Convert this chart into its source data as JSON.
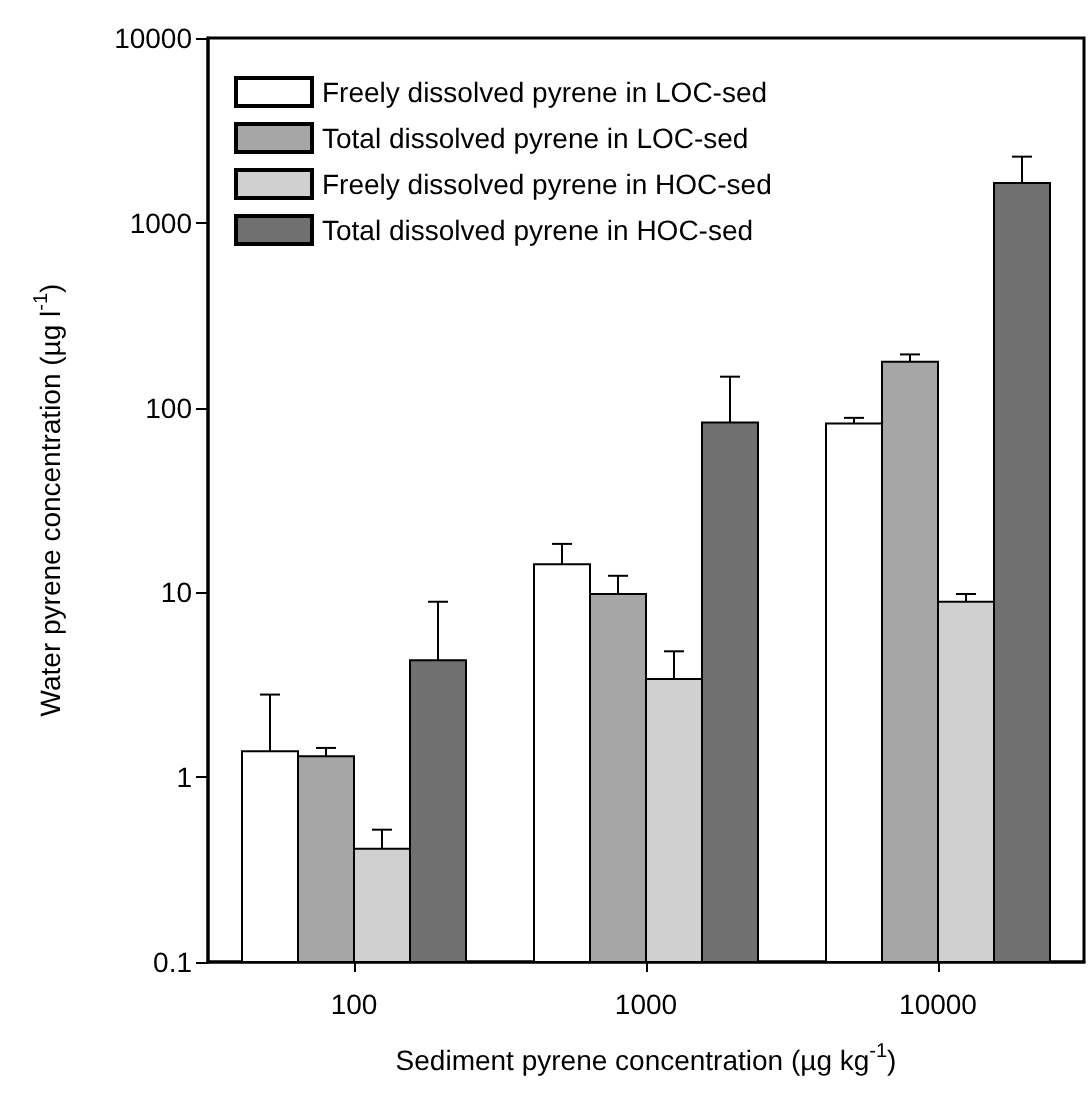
{
  "chart_data": {
    "type": "bar",
    "xlabel": "Sediment pyrene concentration (µg kg$^{-1}$)",
    "ylabel": "Water pyrene concentration (µg l$^{-1}$)",
    "categories": [
      "100",
      "1000",
      "10000"
    ],
    "series": [
      {
        "name": "Freely dissolved pyrene in LOC-sed",
        "color": "#ffffff",
        "values": [
          1.38,
          14.2,
          82
        ],
        "errors": [
          [
            1.38,
            2.8
          ],
          [
            14.2,
            18.3
          ],
          [
            82,
            88
          ]
        ]
      },
      {
        "name": "Total dissolved pyrene in LOC-sed",
        "color": "#a6a6a6",
        "values": [
          1.3,
          9.8,
          177
        ],
        "errors": [
          [
            1.3,
            1.44
          ],
          [
            9.8,
            12.3
          ],
          [
            177,
            194
          ]
        ]
      },
      {
        "name": "Freely dissolved pyrene in HOC-sed",
        "color": "#d0d0d0",
        "values": [
          0.41,
          3.4,
          8.9
        ],
        "errors": [
          [
            0.41,
            0.52
          ],
          [
            3.4,
            4.8
          ],
          [
            8.9,
            9.8
          ]
        ]
      },
      {
        "name": "Total dissolved pyrene in HOC-sed",
        "color": "#707070",
        "values": [
          4.3,
          83,
          1640
        ],
        "errors": [
          [
            4.3,
            8.9
          ],
          [
            83,
            147
          ],
          [
            1640,
            2280
          ]
        ]
      }
    ],
    "log": "y",
    "ylim": [
      0.1,
      10000
    ],
    "yticks": [
      0.1,
      1,
      10,
      100,
      1000,
      10000
    ],
    "grid": false,
    "legend": "top left"
  }
}
